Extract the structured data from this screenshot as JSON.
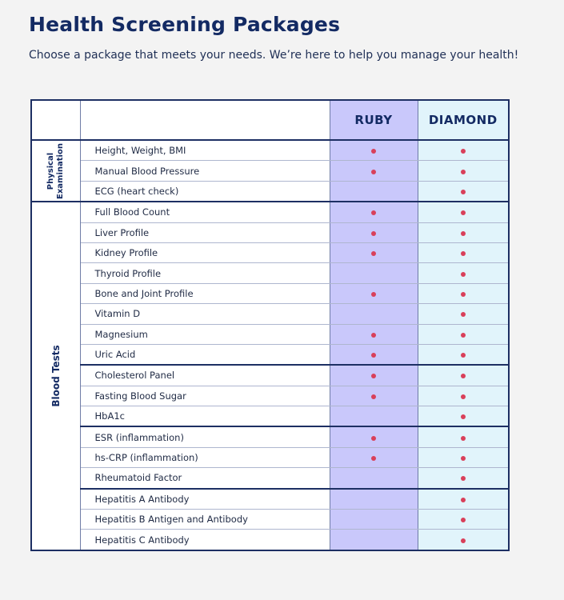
{
  "header": {
    "title": "Health Screening Packages",
    "subtitle": "Choose a package that meets your needs. We’re here to help you manage your health!"
  },
  "colors": {
    "ruby": "#c9c8fb",
    "diamond": "#e1f4fb",
    "dot": "#d9405a",
    "navy": "#132a63"
  },
  "table": {
    "columns": [
      "RUBY",
      "DIAMOND"
    ],
    "groups": [
      {
        "label": "Physical Examination",
        "label_lines": [
          "Physical",
          "Examination"
        ],
        "rows": [
          {
            "name": "Height, Weight, BMI",
            "ruby": true,
            "diamond": true
          },
          {
            "name": "Manual Blood Pressure",
            "ruby": true,
            "diamond": true
          },
          {
            "name": "ECG (heart check)",
            "ruby": false,
            "diamond": true
          }
        ]
      },
      {
        "label": "Blood Tests",
        "label_lines": [
          "Blood Tests"
        ],
        "rows": [
          {
            "name": "Full Blood Count",
            "ruby": true,
            "diamond": true
          },
          {
            "name": "Liver Profile",
            "ruby": true,
            "diamond": true
          },
          {
            "name": "Kidney Profile",
            "ruby": true,
            "diamond": true
          },
          {
            "name": "Thyroid Profile",
            "ruby": false,
            "diamond": true
          },
          {
            "name": "Bone and Joint Profile",
            "ruby": true,
            "diamond": true
          },
          {
            "name": "Vitamin D",
            "ruby": false,
            "diamond": true
          },
          {
            "name": "Magnesium",
            "ruby": true,
            "diamond": true
          },
          {
            "name": "Uric Acid",
            "ruby": true,
            "diamond": true,
            "section_end": true
          },
          {
            "name": "Cholesterol Panel",
            "ruby": true,
            "diamond": true
          },
          {
            "name": "Fasting Blood Sugar",
            "ruby": true,
            "diamond": true
          },
          {
            "name": "HbA1c",
            "ruby": false,
            "diamond": true,
            "section_end": true
          },
          {
            "name": "ESR (inflammation)",
            "ruby": true,
            "diamond": true
          },
          {
            "name": "hs-CRP (inflammation)",
            "ruby": true,
            "diamond": true
          },
          {
            "name": "Rheumatoid Factor",
            "ruby": false,
            "diamond": true,
            "section_end": true
          },
          {
            "name": "Hepatitis A Antibody",
            "ruby": false,
            "diamond": true
          },
          {
            "name": "Hepatitis B Antigen and Antibody",
            "ruby": false,
            "diamond": true
          },
          {
            "name": "Hepatitis C  Antibody",
            "ruby": false,
            "diamond": true
          }
        ]
      }
    ]
  }
}
